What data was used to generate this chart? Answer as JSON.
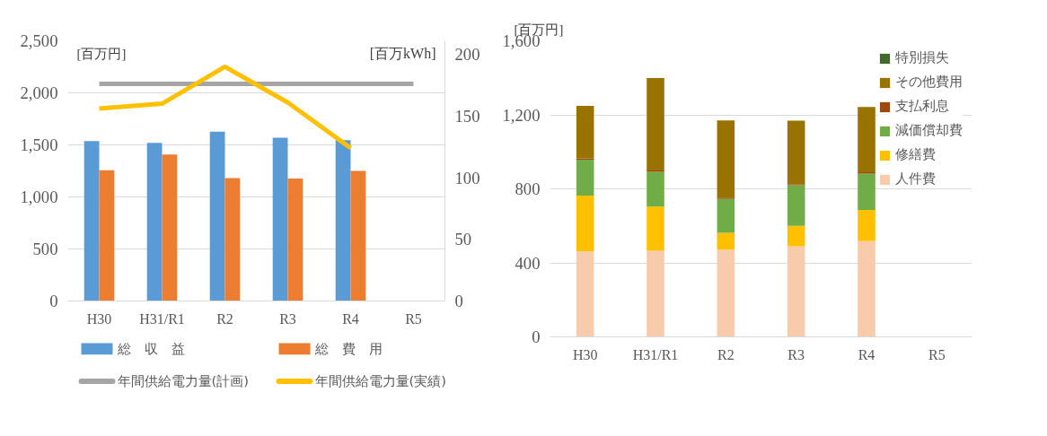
{
  "chart_data": [
    {
      "type": "bar",
      "categories": [
        "H30",
        "H31/R1",
        "R2",
        "R3",
        "R4",
        "R5"
      ],
      "ylabel": "[百万円]",
      "y2label": "[百万kWh]",
      "ylim": [
        0,
        2500
      ],
      "yticks": [
        {
          "value": 0,
          "label": "0"
        },
        {
          "value": 500,
          "label": "500"
        },
        {
          "value": 1000,
          "label": "1,000"
        },
        {
          "value": 1500,
          "label": "1,500"
        },
        {
          "value": 2000,
          "label": "2,000"
        },
        {
          "value": 2500,
          "label": "2,500"
        }
      ],
      "y2lim": [
        0,
        211
      ],
      "y2ticks": [
        0,
        50,
        100,
        150,
        200
      ],
      "grid": "y",
      "legend": "bottom",
      "series": [
        {
          "name": "総　収　益",
          "color": "#5b9bd5",
          "values": [
            1536,
            1519,
            1628,
            1568,
            1545,
            null
          ]
        },
        {
          "name": "総　費　用",
          "color": "#ed7d31",
          "values": [
            1257,
            1407,
            1180,
            1177,
            1251,
            null
          ]
        },
        {
          "name": "年間供給電力量(計画)",
          "type": "line",
          "axis": "y2",
          "color": "#a5a5a5",
          "values": [
            176,
            176,
            176,
            176,
            176,
            176
          ]
        },
        {
          "name": "年間供給電力量(実績)",
          "type": "line",
          "axis": "y2",
          "color": "#ffc000",
          "values": [
            156,
            160,
            190,
            161,
            124,
            null
          ]
        }
      ]
    },
    {
      "type": "bar",
      "stacked": true,
      "categories": [
        "H30",
        "H31/R1",
        "R2",
        "R3",
        "R4",
        "R5"
      ],
      "ylabel": "[百万円]",
      "ylim": [
        0,
        1600
      ],
      "yticks": [
        {
          "value": 0,
          "label": "0"
        },
        {
          "value": 400,
          "label": "400"
        },
        {
          "value": 800,
          "label": "800"
        },
        {
          "value": 1200,
          "label": "1,200"
        },
        {
          "value": 1600,
          "label": "1,600"
        }
      ],
      "grid": "y",
      "legend": "top right",
      "series": [
        {
          "name": "人件費",
          "color": "#f8cbad",
          "values": [
            463,
            466,
            472,
            490,
            517,
            null
          ]
        },
        {
          "name": "修繕費",
          "color": "#ffc000",
          "values": [
            301,
            238,
            91,
            110,
            169,
            null
          ]
        },
        {
          "name": "減価償却費",
          "color": "#70ad47",
          "values": [
            194,
            188,
            183,
            219,
            197,
            null
          ]
        },
        {
          "name": "支払利息",
          "color": "#9e480e",
          "values": [
            7,
            7,
            7,
            7,
            7,
            null
          ]
        },
        {
          "name": "その他費用",
          "color": "#997300",
          "values": [
            284,
            500,
            417,
            342,
            353,
            null
          ]
        },
        {
          "name": "特別損失",
          "color": "#43682b",
          "values": [
            0,
            0,
            0,
            0,
            0,
            null
          ]
        }
      ]
    }
  ]
}
